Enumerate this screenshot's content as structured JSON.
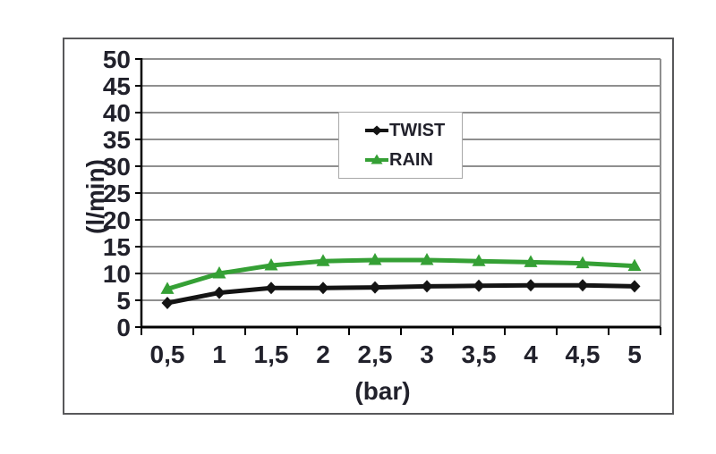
{
  "page": {
    "background": "#ffffff"
  },
  "chart_data": {
    "type": "line",
    "title": "",
    "xlabel": "(bar)",
    "ylabel": "(l/min)",
    "x_values": [
      0.5,
      1,
      1.5,
      2,
      2.5,
      3,
      3.5,
      4,
      4.5,
      5
    ],
    "x_tick_labels": [
      "0,5",
      "1",
      "1,5",
      "2",
      "2,5",
      "3",
      "3,5",
      "4",
      "4,5",
      "5"
    ],
    "y_tick_labels": [
      "0",
      "5",
      "10",
      "15",
      "20",
      "25",
      "30",
      "35",
      "40",
      "45",
      "50"
    ],
    "ylim": [
      0,
      50
    ],
    "ytick_step": 5,
    "grid": true,
    "legend_position": "inside-top-center",
    "series": [
      {
        "name": "TWIST",
        "color": "#141414",
        "marker": "diamond",
        "values": [
          4.5,
          6.4,
          7.3,
          7.3,
          7.4,
          7.6,
          7.7,
          7.8,
          7.8,
          7.6
        ]
      },
      {
        "name": "RAIN",
        "color": "#35a035",
        "marker": "triangle",
        "values": [
          7.1,
          10.0,
          11.5,
          12.3,
          12.5,
          12.5,
          12.3,
          12.1,
          11.9,
          11.4
        ]
      }
    ]
  },
  "colors": {
    "text": "#21212b",
    "grid": "#8f8f8f",
    "axis": "#000000",
    "frame_border": "#58585a",
    "legend_border": "#a8a8a8",
    "background": "#ffffff"
  }
}
